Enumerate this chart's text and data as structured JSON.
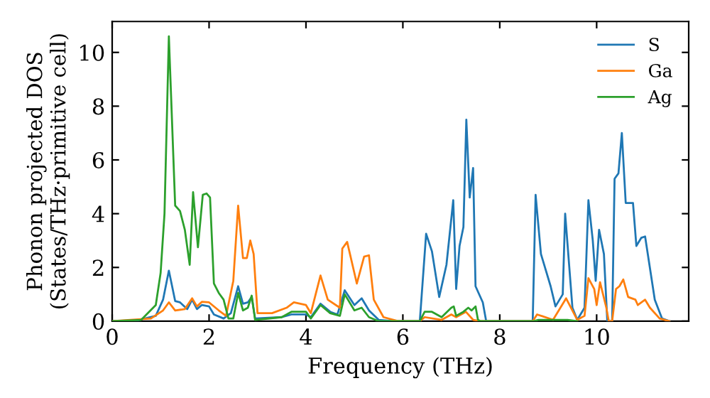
{
  "chart_data": {
    "type": "line",
    "xlabel": "Frequency (THz)",
    "ylabel": "Phonon projected DOS\n(States/THz·primitive cell)",
    "xlim": [
      0,
      11.9
    ],
    "ylim": [
      0,
      11.15
    ],
    "xticks": [
      0,
      2,
      4,
      6,
      8,
      10
    ],
    "yticks": [
      0,
      2,
      4,
      6,
      8,
      10
    ],
    "grid": false,
    "legend": "top right",
    "marker": "none",
    "line_style": "solid",
    "series": [
      {
        "name": "S",
        "color": "#1f77b4",
        "x": [
          0,
          0.5,
          0.9,
          1.05,
          1.17,
          1.3,
          1.4,
          1.55,
          1.65,
          1.75,
          1.85,
          2.0,
          2.1,
          2.3,
          2.45,
          2.6,
          2.7,
          2.8,
          2.88,
          2.95,
          3.5,
          3.7,
          4.0,
          4.1,
          4.3,
          4.5,
          4.65,
          4.8,
          5.0,
          5.15,
          5.3,
          5.5,
          5.8,
          6.35,
          6.48,
          6.6,
          6.75,
          6.9,
          7.04,
          7.1,
          7.17,
          7.25,
          7.31,
          7.38,
          7.45,
          7.5,
          7.65,
          7.72,
          8.68,
          8.74,
          8.85,
          9.05,
          9.15,
          9.3,
          9.35,
          9.5,
          9.6,
          9.75,
          9.83,
          9.92,
          9.98,
          10.05,
          10.15,
          10.22,
          10.32,
          10.37,
          10.45,
          10.52,
          10.6,
          10.75,
          10.82,
          10.92,
          11.0,
          11.2,
          11.35,
          11.5
        ],
        "values": [
          0,
          0.02,
          0.2,
          0.8,
          1.88,
          0.75,
          0.7,
          0.45,
          0.8,
          0.45,
          0.6,
          0.55,
          0.25,
          0.1,
          0.3,
          1.3,
          0.65,
          0.7,
          0.9,
          0.1,
          0.15,
          0.25,
          0.25,
          0.15,
          0.65,
          0.35,
          0.25,
          1.15,
          0.6,
          0.85,
          0.4,
          0.05,
          0,
          0,
          3.25,
          2.6,
          0.9,
          2.1,
          4.5,
          1.2,
          2.8,
          3.5,
          7.5,
          4.6,
          5.7,
          1.3,
          0.7,
          0,
          0,
          4.7,
          2.5,
          1.3,
          0.55,
          1.0,
          4.0,
          0.5,
          0.05,
          0.5,
          4.5,
          3.0,
          1.5,
          3.4,
          2.5,
          0,
          0,
          5.3,
          5.5,
          7.0,
          4.4,
          4.4,
          2.8,
          3.1,
          3.15,
          0.8,
          0.1,
          0
        ]
      },
      {
        "name": "Ga",
        "color": "#ff7f0e",
        "x": [
          0,
          0.8,
          1.05,
          1.17,
          1.3,
          1.5,
          1.65,
          1.75,
          1.85,
          2.0,
          2.2,
          2.35,
          2.5,
          2.6,
          2.7,
          2.78,
          2.85,
          2.92,
          3.0,
          3.3,
          3.6,
          3.75,
          4.0,
          4.1,
          4.3,
          4.45,
          4.7,
          4.75,
          4.85,
          5.05,
          5.2,
          5.3,
          5.4,
          5.6,
          5.9,
          6.35,
          6.45,
          6.8,
          7.0,
          7.1,
          7.3,
          7.45,
          7.6,
          8.68,
          8.77,
          9.1,
          9.37,
          9.6,
          9.75,
          9.83,
          9.95,
          10.0,
          10.07,
          10.2,
          10.25,
          10.32,
          10.4,
          10.47,
          10.55,
          10.65,
          10.8,
          10.85,
          11.0,
          11.1,
          11.3,
          11.5
        ],
        "values": [
          0,
          0.1,
          0.4,
          0.7,
          0.4,
          0.45,
          0.85,
          0.55,
          0.72,
          0.7,
          0.4,
          0.2,
          1.5,
          4.3,
          2.35,
          2.35,
          3.0,
          2.5,
          0.3,
          0.3,
          0.5,
          0.7,
          0.6,
          0.3,
          1.7,
          0.8,
          0.5,
          2.7,
          2.95,
          1.4,
          2.4,
          2.45,
          0.8,
          0.15,
          0,
          0,
          0.15,
          0.05,
          0.25,
          0.15,
          0.35,
          0.05,
          0,
          0,
          0.25,
          0.05,
          0.85,
          0.05,
          0.2,
          1.6,
          1.2,
          0.6,
          1.45,
          0.5,
          0,
          0,
          1.2,
          1.3,
          1.55,
          0.9,
          0.8,
          0.6,
          0.8,
          0.5,
          0.1,
          0
        ]
      },
      {
        "name": "Ag",
        "color": "#2ca02c",
        "x": [
          0,
          0.6,
          0.9,
          1.0,
          1.08,
          1.17,
          1.3,
          1.4,
          1.5,
          1.6,
          1.67,
          1.77,
          1.87,
          1.95,
          2.02,
          2.1,
          2.2,
          2.3,
          2.4,
          2.5,
          2.6,
          2.7,
          2.8,
          2.88,
          2.95,
          3.5,
          3.7,
          4.0,
          4.1,
          4.3,
          4.5,
          4.7,
          4.8,
          5.0,
          5.15,
          5.3,
          5.5,
          6.35,
          6.45,
          6.6,
          6.8,
          7.0,
          7.05,
          7.1,
          7.25,
          7.35,
          7.42,
          7.5,
          7.55,
          7.6,
          8.7,
          8.8,
          9.4,
          9.6
        ],
        "values": [
          0,
          0.05,
          0.6,
          1.8,
          4.0,
          10.6,
          4.3,
          4.1,
          3.4,
          2.1,
          4.8,
          2.75,
          4.7,
          4.75,
          4.6,
          1.4,
          1.05,
          0.8,
          0.1,
          0.1,
          1.05,
          0.4,
          0.5,
          0.95,
          0.05,
          0.15,
          0.35,
          0.35,
          0.1,
          0.6,
          0.3,
          0.2,
          1.0,
          0.4,
          0.5,
          0.15,
          0,
          0,
          0.35,
          0.35,
          0.15,
          0.5,
          0.55,
          0.2,
          0.35,
          0.5,
          0.4,
          0.55,
          0.05,
          0,
          0,
          0.05,
          0.05,
          0
        ]
      }
    ]
  }
}
